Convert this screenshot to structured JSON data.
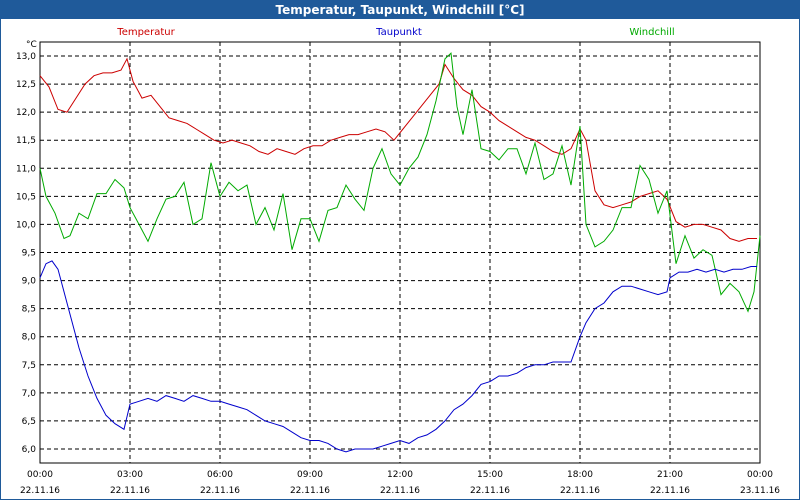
{
  "window": {
    "title": "Temperatur, Taupunkt, Windchill [°C]"
  },
  "chart_data": {
    "type": "line",
    "title": "Temperatur, Taupunkt, Windchill [°C]",
    "ylabel": "°C",
    "xlabel": "",
    "ylim": [
      5.75,
      13.25
    ],
    "xlim": [
      0,
      24
    ],
    "grid": true,
    "y_ticks": [
      6.0,
      6.5,
      7.0,
      7.5,
      8.0,
      8.5,
      9.0,
      9.5,
      10.0,
      10.5,
      11.0,
      11.5,
      12.0,
      12.5,
      13.0
    ],
    "y_tick_labels": [
      "6,0",
      "6,5",
      "7,0",
      "7,5",
      "8,0",
      "8,5",
      "9,0",
      "9,5",
      "10,0",
      "10,5",
      "11,0",
      "11,5",
      "12,0",
      "12,5",
      "13,0"
    ],
    "x_ticks": [
      {
        "h": 0,
        "time": "00:00",
        "date": "22.11.16"
      },
      {
        "h": 3,
        "time": "03:00",
        "date": "22.11.16"
      },
      {
        "h": 6,
        "time": "06:00",
        "date": "22.11.16"
      },
      {
        "h": 9,
        "time": "09:00",
        "date": "22.11.16"
      },
      {
        "h": 12,
        "time": "12:00",
        "date": "22.11.16"
      },
      {
        "h": 15,
        "time": "15:00",
        "date": "22.11.16"
      },
      {
        "h": 18,
        "time": "18:00",
        "date": "22.11.16"
      },
      {
        "h": 21,
        "time": "21:00",
        "date": "22.11.16"
      },
      {
        "h": 24,
        "time": "00:00",
        "date": "23.11.16"
      }
    ],
    "series": [
      {
        "name": "Temperatur",
        "color": "#cc0000",
        "x": [
          0,
          0.3,
          0.6,
          0.9,
          1.2,
          1.5,
          1.8,
          2.1,
          2.4,
          2.7,
          2.9,
          3.1,
          3.4,
          3.7,
          4.0,
          4.3,
          4.6,
          4.9,
          5.2,
          5.5,
          5.8,
          6.1,
          6.4,
          6.7,
          7.0,
          7.3,
          7.6,
          7.9,
          8.2,
          8.5,
          8.8,
          9.1,
          9.4,
          9.7,
          10.0,
          10.3,
          10.6,
          10.9,
          11.2,
          11.5,
          11.8,
          12.1,
          12.4,
          12.7,
          13.0,
          13.3,
          13.5,
          13.8,
          14.1,
          14.4,
          14.7,
          15.0,
          15.3,
          15.6,
          15.9,
          16.2,
          16.5,
          16.8,
          17.1,
          17.4,
          17.7,
          18.0,
          18.2,
          18.5,
          18.8,
          19.1,
          19.4,
          19.7,
          20.0,
          20.3,
          20.6,
          20.9,
          21.2,
          21.5,
          21.8,
          22.1,
          22.4,
          22.7,
          23.0,
          23.3,
          23.6,
          23.9
        ],
        "y": [
          12.65,
          12.45,
          12.05,
          12.0,
          12.25,
          12.5,
          12.65,
          12.7,
          12.7,
          12.75,
          12.95,
          12.55,
          12.25,
          12.3,
          12.1,
          11.9,
          11.85,
          11.8,
          11.7,
          11.6,
          11.5,
          11.45,
          11.5,
          11.45,
          11.4,
          11.3,
          11.25,
          11.35,
          11.3,
          11.25,
          11.35,
          11.4,
          11.4,
          11.5,
          11.55,
          11.6,
          11.6,
          11.65,
          11.7,
          11.65,
          11.5,
          11.7,
          11.9,
          12.1,
          12.3,
          12.5,
          12.85,
          12.6,
          12.4,
          12.3,
          12.1,
          12.0,
          11.85,
          11.75,
          11.65,
          11.55,
          11.5,
          11.4,
          11.3,
          11.25,
          11.35,
          11.7,
          11.5,
          10.6,
          10.35,
          10.3,
          10.35,
          10.4,
          10.5,
          10.55,
          10.6,
          10.45,
          10.05,
          9.95,
          10.0,
          10.0,
          9.95,
          9.9,
          9.75,
          9.7,
          9.75,
          9.75
        ]
      },
      {
        "name": "Taupunkt",
        "color": "#0000cc",
        "x": [
          0,
          0.2,
          0.4,
          0.6,
          0.8,
          1.0,
          1.3,
          1.6,
          1.9,
          2.2,
          2.5,
          2.8,
          3.0,
          3.3,
          3.6,
          3.9,
          4.2,
          4.5,
          4.8,
          5.1,
          5.4,
          5.7,
          6.0,
          6.3,
          6.6,
          6.9,
          7.2,
          7.5,
          7.8,
          8.1,
          8.4,
          8.7,
          9.0,
          9.3,
          9.6,
          9.9,
          10.2,
          10.5,
          10.8,
          11.1,
          11.4,
          11.7,
          12.0,
          12.3,
          12.6,
          12.9,
          13.2,
          13.5,
          13.8,
          14.1,
          14.4,
          14.7,
          15.0,
          15.3,
          15.6,
          15.9,
          16.2,
          16.5,
          16.8,
          17.1,
          17.4,
          17.7,
          18.0,
          18.2,
          18.5,
          18.8,
          19.1,
          19.4,
          19.7,
          20.0,
          20.3,
          20.6,
          20.9,
          21.0,
          21.3,
          21.6,
          21.9,
          22.2,
          22.5,
          22.8,
          23.1,
          23.4,
          23.7,
          23.9
        ],
        "y": [
          9.05,
          9.3,
          9.35,
          9.2,
          8.8,
          8.4,
          7.8,
          7.3,
          6.9,
          6.6,
          6.45,
          6.35,
          6.8,
          6.85,
          6.9,
          6.85,
          6.95,
          6.9,
          6.85,
          6.95,
          6.9,
          6.85,
          6.85,
          6.8,
          6.75,
          6.7,
          6.6,
          6.5,
          6.45,
          6.4,
          6.3,
          6.2,
          6.15,
          6.15,
          6.1,
          6.0,
          5.95,
          6.0,
          6.0,
          6.0,
          6.05,
          6.1,
          6.15,
          6.1,
          6.2,
          6.25,
          6.35,
          6.5,
          6.7,
          6.8,
          6.95,
          7.15,
          7.2,
          7.3,
          7.3,
          7.35,
          7.45,
          7.5,
          7.5,
          7.55,
          7.55,
          7.55,
          8.0,
          8.25,
          8.5,
          8.6,
          8.8,
          8.9,
          8.9,
          8.85,
          8.8,
          8.75,
          8.8,
          9.05,
          9.15,
          9.15,
          9.2,
          9.15,
          9.2,
          9.15,
          9.2,
          9.2,
          9.25,
          9.25
        ]
      },
      {
        "name": "Windchill",
        "color": "#00aa00",
        "x": [
          0,
          0.2,
          0.5,
          0.8,
          1.0,
          1.3,
          1.6,
          1.9,
          2.2,
          2.5,
          2.8,
          3.0,
          3.3,
          3.6,
          3.9,
          4.2,
          4.5,
          4.8,
          5.1,
          5.4,
          5.7,
          6.0,
          6.3,
          6.6,
          6.9,
          7.2,
          7.5,
          7.8,
          8.1,
          8.4,
          8.7,
          9.0,
          9.3,
          9.6,
          9.9,
          10.2,
          10.5,
          10.8,
          11.1,
          11.4,
          11.7,
          12.0,
          12.3,
          12.6,
          12.9,
          13.2,
          13.5,
          13.7,
          13.9,
          14.1,
          14.4,
          14.7,
          15.0,
          15.3,
          15.6,
          15.9,
          16.2,
          16.5,
          16.8,
          17.1,
          17.4,
          17.7,
          18.0,
          18.2,
          18.5,
          18.8,
          19.1,
          19.4,
          19.7,
          20.0,
          20.3,
          20.6,
          20.9,
          21.2,
          21.5,
          21.8,
          22.1,
          22.4,
          22.7,
          23.0,
          23.3,
          23.6,
          23.8,
          24.0
        ],
        "y": [
          11.0,
          10.5,
          10.2,
          9.75,
          9.8,
          10.2,
          10.1,
          10.55,
          10.55,
          10.8,
          10.65,
          10.3,
          10.0,
          9.7,
          10.1,
          10.45,
          10.5,
          10.75,
          10.0,
          10.1,
          11.1,
          10.5,
          10.75,
          10.6,
          10.7,
          10.0,
          10.3,
          9.9,
          10.55,
          9.55,
          10.1,
          10.1,
          9.7,
          10.25,
          10.3,
          10.7,
          10.45,
          10.25,
          11.0,
          11.35,
          10.9,
          10.7,
          11.0,
          11.2,
          11.6,
          12.2,
          12.95,
          13.05,
          12.1,
          11.6,
          12.4,
          11.35,
          11.3,
          11.15,
          11.35,
          11.35,
          10.9,
          11.45,
          10.8,
          10.9,
          11.4,
          10.7,
          11.75,
          10.0,
          9.6,
          9.7,
          9.9,
          10.3,
          10.3,
          11.05,
          10.8,
          10.2,
          10.6,
          9.3,
          9.8,
          9.4,
          9.55,
          9.45,
          8.75,
          8.95,
          8.8,
          8.45,
          8.8,
          9.8
        ]
      }
    ]
  }
}
